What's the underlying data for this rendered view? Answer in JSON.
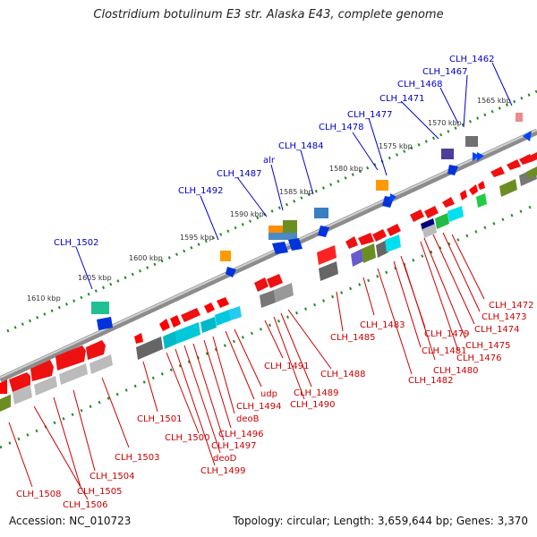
{
  "title": "Clostridium botulinum E3 str. Alaska E43, complete genome",
  "accession": "Accession: NC_010723",
  "summary": "Topology: circular; Length: 3,659,644 bp; Genes: 3,370",
  "colors": {
    "top_label": "#0000cc",
    "bottom_label": "#cc0000",
    "backbone": "#888888",
    "tick": "#228b22"
  },
  "kbp_labels": [
    {
      "text": "1565 kbp"
    },
    {
      "text": "1570 kbp"
    },
    {
      "text": "1575 kbp"
    },
    {
      "text": "1580 kbp"
    },
    {
      "text": "1585 kbp"
    },
    {
      "text": "1590 kbp"
    },
    {
      "text": "1595 kbp"
    },
    {
      "text": "1600 kbp"
    },
    {
      "text": "1605 kbp"
    },
    {
      "text": "1610 kbp"
    }
  ],
  "top_labels": [
    {
      "text": "CLH_1462"
    },
    {
      "text": "CLH_1467"
    },
    {
      "text": "CLH_1468"
    },
    {
      "text": "CLH_1471"
    },
    {
      "text": "CLH_1477"
    },
    {
      "text": "CLH_1478"
    },
    {
      "text": "CLH_1484"
    },
    {
      "text": "alr"
    },
    {
      "text": "CLH_1487"
    },
    {
      "text": "CLH_1492"
    },
    {
      "text": "CLH_1502"
    }
  ],
  "bottom_labels": [
    {
      "text": "CLH_1472"
    },
    {
      "text": "CLH_1473"
    },
    {
      "text": "CLH_1474"
    },
    {
      "text": "CLH_1475"
    },
    {
      "text": "CLH_1476"
    },
    {
      "text": "CLH_1479"
    },
    {
      "text": "CLH_1480"
    },
    {
      "text": "CLH_1481"
    },
    {
      "text": "CLH_1482"
    },
    {
      "text": "CLH_1483"
    },
    {
      "text": "CLH_1485"
    },
    {
      "text": "CLH_1488"
    },
    {
      "text": "CLH_1489"
    },
    {
      "text": "CLH_1490"
    },
    {
      "text": "CLH_1491"
    },
    {
      "text": "udp"
    },
    {
      "text": "CLH_1494"
    },
    {
      "text": "deoB"
    },
    {
      "text": "CLH_1496"
    },
    {
      "text": "CLH_1497"
    },
    {
      "text": "deoD"
    },
    {
      "text": "CLH_1499"
    },
    {
      "text": "CLH_1500"
    },
    {
      "text": "CLH_1501"
    },
    {
      "text": "CLH_1503"
    },
    {
      "text": "CLH_1504"
    },
    {
      "text": "CLH_1505"
    },
    {
      "text": "CLH_1506"
    },
    {
      "text": "CLH_1508"
    }
  ]
}
